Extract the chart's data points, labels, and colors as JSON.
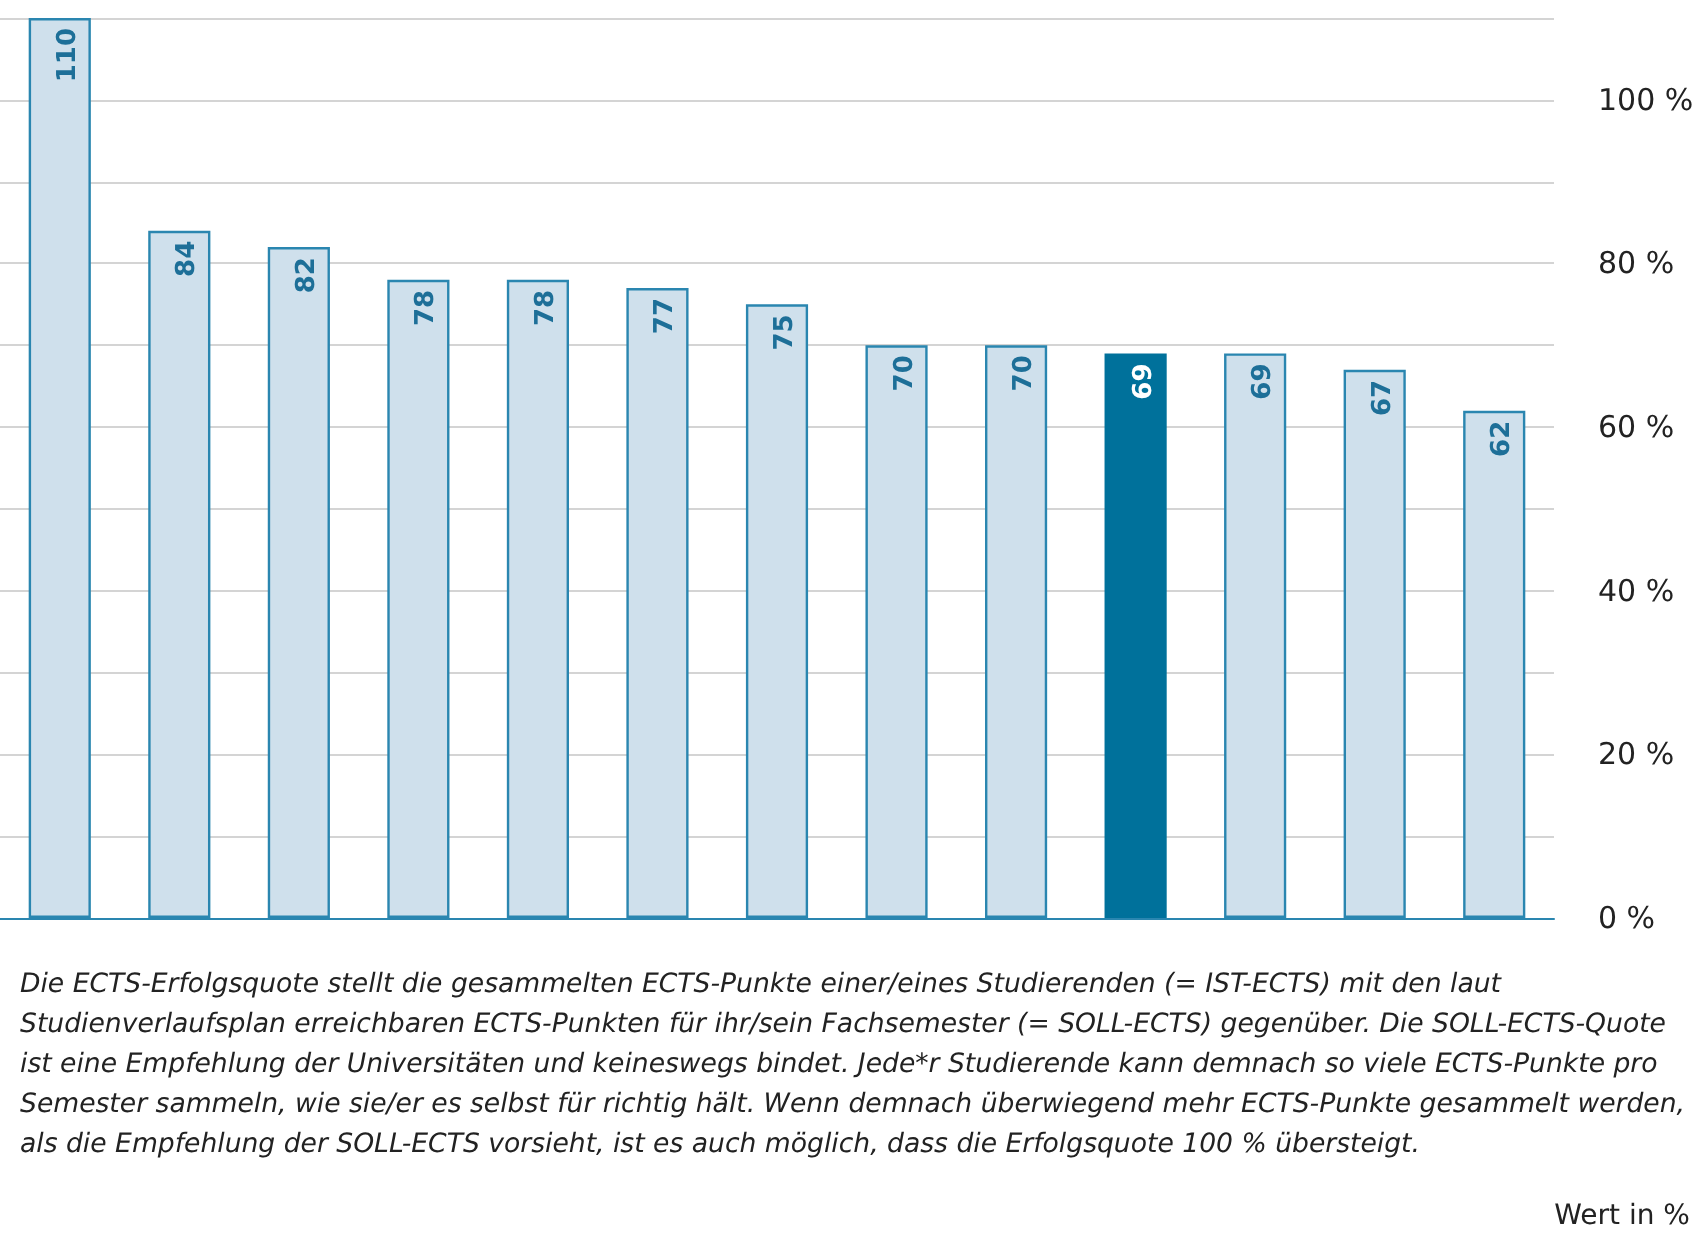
{
  "chart_data": {
    "type": "bar",
    "categories": [
      null,
      null,
      null,
      null,
      null,
      null,
      null,
      null,
      null,
      null,
      null,
      null,
      null
    ],
    "values": [
      110,
      84,
      82,
      78,
      78,
      77,
      75,
      70,
      70,
      69,
      69,
      67,
      62
    ],
    "colors": [
      "#cfe0ec",
      "#cfe0ec",
      "#cfe0ec",
      "#cfe0ec",
      "#cfe0ec",
      "#cfe0ec",
      "#cfe0ec",
      "#cfe0ec",
      "#cfe0ec",
      "#00719b",
      "#cfe0ec",
      "#cfe0ec",
      "#cfe0ec"
    ],
    "data_labels": true,
    "ylim": [
      0,
      110
    ],
    "yticks": [
      {
        "value": 0,
        "label": "0 %"
      },
      {
        "value": 10,
        "label": null
      },
      {
        "value": 20,
        "label": "20 %"
      },
      {
        "value": 30,
        "label": null
      },
      {
        "value": 40,
        "label": "40 %"
      },
      {
        "value": 50,
        "label": null
      },
      {
        "value": 60,
        "label": "60 %"
      },
      {
        "value": 70,
        "label": null
      },
      {
        "value": 80,
        "label": "80 %"
      },
      {
        "value": 90,
        "label": null
      },
      {
        "value": 100,
        "label": "100 %"
      },
      {
        "value": 110,
        "label": null
      }
    ],
    "grid": "y",
    "annotations": [
      "Die ECTS-Erfolgsquote stellt die gesammelten ECTS-Punkte einer/eines Studierenden (= IST-ECTS) mit den laut Studienverlaufsplan erreichbaren ECTS-Punkten für ihr/sein Fachsemester (= SOLL-ECTS) gegenüber. Die SOLL-ECTS-Quote ist eine Empfehlung der Universitäten und keineswegs bindet. Jede*r Studierende kann demnach so viele ECTS-Punkte pro Semester sammeln, wie sie/er es selbst für richtig hält. Wenn demnach überwiegend mehr ECTS-Punkte gesammelt werden, als die Empfehlung der SOLL-ECTS vorsieht, ist es auch möglich, dass die Erfolgsquote 100 % übersteigt.",
      "Wert in %"
    ]
  }
}
